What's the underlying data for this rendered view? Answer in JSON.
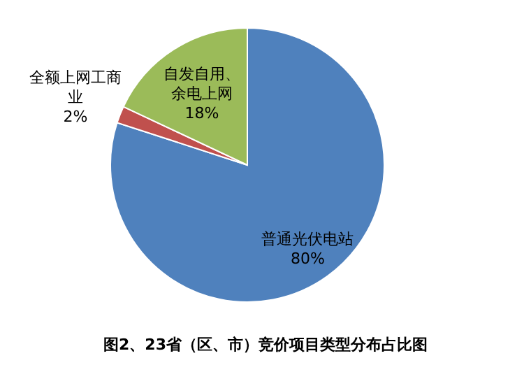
{
  "chart_data": {
    "type": "pie",
    "title": "图2、23省（区、市）竞价项目类型分布占比图",
    "categories": [
      "普通光伏电站",
      "全额上网工商业",
      "自发自用、余电上网"
    ],
    "values": [
      80,
      2,
      18
    ],
    "colors": [
      "#4f81bd",
      "#c0504d",
      "#9bbb59"
    ],
    "value_labels": [
      "80%",
      "2%",
      "18%"
    ]
  }
}
